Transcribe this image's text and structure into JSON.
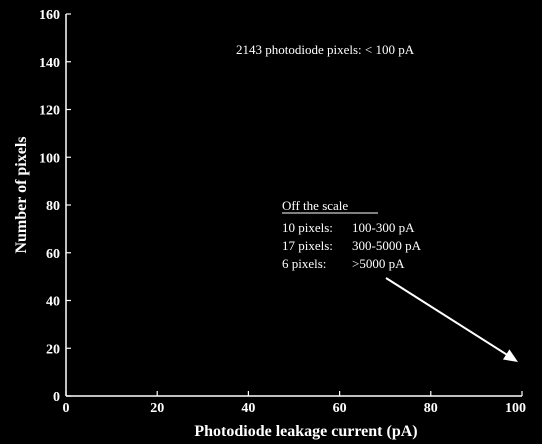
{
  "chart_data": {
    "type": "bar",
    "title": "",
    "xlabel": "Photodiode leakage current (pA)",
    "ylabel": "Number of pixels",
    "xlim": [
      0,
      100
    ],
    "ylim": [
      0,
      160
    ],
    "x_ticks": [
      0,
      20,
      40,
      60,
      80,
      100
    ],
    "y_ticks": [
      0,
      20,
      40,
      60,
      80,
      100,
      120,
      140,
      160
    ],
    "grid": false,
    "colors": {
      "background": "#000000",
      "foreground": "#ffffff"
    },
    "summary_note": "2143 photodiode pixels: < 100 pA",
    "off_scale": {
      "heading": "Off the scale",
      "rows": [
        {
          "count": "10 pixels:",
          "range": "100-300 pA"
        },
        {
          "count": "17 pixels:",
          "range": "300-5000 pA"
        },
        {
          "count": "6 pixels:",
          "range": ">5000 pA"
        }
      ]
    }
  }
}
